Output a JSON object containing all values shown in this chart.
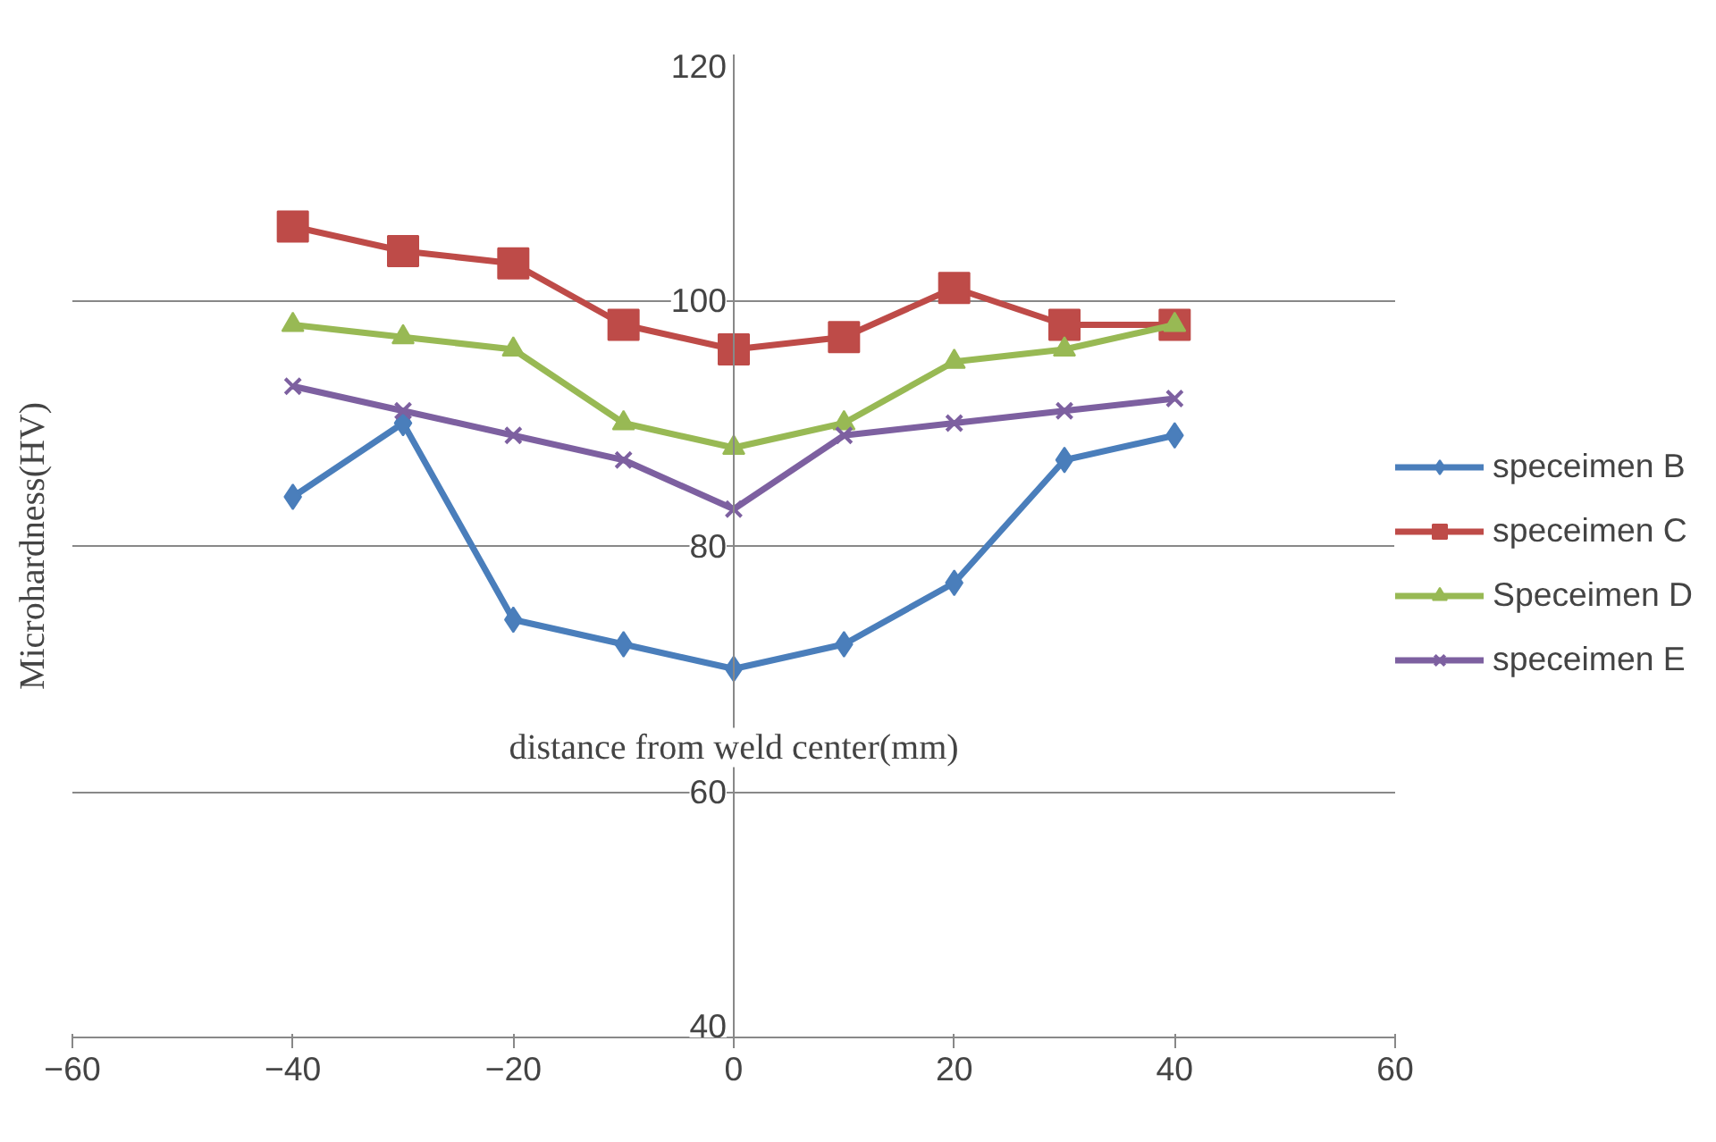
{
  "chart_data": {
    "type": "line",
    "xlabel": "distance from weld center(mm)",
    "ylabel": "Microhardness(HV)",
    "x": [
      -40,
      -30,
      -20,
      -10,
      0,
      10,
      20,
      30,
      40
    ],
    "xlim": [
      -60,
      60
    ],
    "xticks": [
      -60,
      -40,
      -20,
      0,
      20,
      40,
      60
    ],
    "ylim": [
      40,
      120
    ],
    "yticks": [
      40,
      60,
      80,
      100,
      120
    ],
    "grid": "y",
    "legend": "right",
    "line_style": "solid",
    "series": [
      {
        "name": "speceimen B",
        "color": "#4a7ebb",
        "marker": "diamond",
        "values": [
          84,
          90,
          74,
          72,
          70,
          72,
          77,
          87,
          89
        ]
      },
      {
        "name": "speceimen C",
        "color": "#be4b48",
        "marker": "square",
        "values": [
          106,
          104,
          103,
          98,
          96,
          97,
          101,
          98,
          98
        ]
      },
      {
        "name": "Speceimen D",
        "color": "#98b954",
        "marker": "triangle",
        "values": [
          98,
          97,
          96,
          90,
          88,
          90,
          95,
          96,
          98
        ]
      },
      {
        "name": "speceimen E",
        "color": "#7d60a0",
        "marker": "x",
        "values": [
          93,
          91,
          89,
          87,
          83,
          89,
          90,
          91,
          92
        ]
      }
    ]
  }
}
